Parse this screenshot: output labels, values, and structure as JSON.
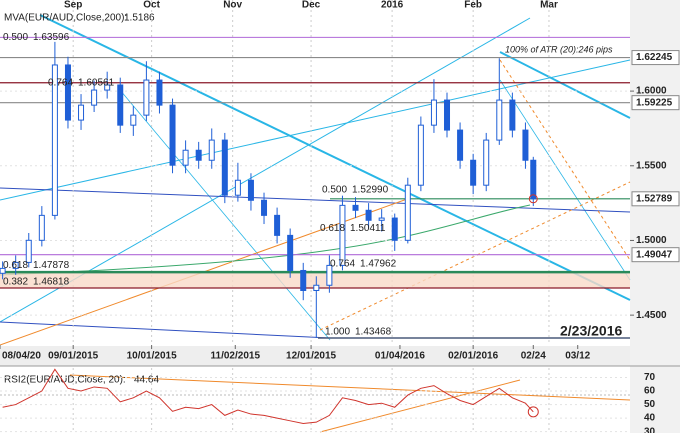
{
  "chart_data": [
    {
      "type": "candlestick",
      "indicator_label": "MVA(EUR/AUD,Close,200):",
      "indicator_value": 1.5186,
      "note": "100% of ATR (20):246 pips",
      "watermark": "2/23/2016",
      "x": [
        "2015-08-05",
        "2015-08-10",
        "2015-08-15",
        "2015-08-20",
        "2015-08-25",
        "2015-08-30",
        "2015-09-04",
        "2015-09-09",
        "2015-09-14",
        "2015-09-19",
        "2015-09-24",
        "2015-09-29",
        "2015-10-04",
        "2015-10-09",
        "2015-10-14",
        "2015-10-19",
        "2015-10-24",
        "2015-10-29",
        "2015-11-03",
        "2015-11-08",
        "2015-11-13",
        "2015-11-18",
        "2015-11-23",
        "2015-11-28",
        "2015-12-03",
        "2015-12-08",
        "2015-12-13",
        "2015-12-18",
        "2015-12-23",
        "2015-12-28",
        "2016-01-02",
        "2016-01-07",
        "2016-01-12",
        "2016-01-17",
        "2016-01-22",
        "2016-01-27",
        "2016-02-01",
        "2016-02-06",
        "2016-02-11",
        "2016-02-16",
        "2016-02-21",
        "2016-02-24"
      ],
      "open": [
        1.478,
        1.4813,
        1.4853,
        1.5001,
        1.5168,
        1.6175,
        1.5806,
        1.5906,
        1.6007,
        1.6041,
        1.5772,
        1.5839,
        1.6074,
        1.5906,
        1.5504,
        1.5604,
        1.5537,
        1.5672,
        1.5303,
        1.5403,
        1.5269,
        1.5168,
        1.5034,
        1.4799,
        1.4665,
        1.47,
        1.4833,
        1.5235,
        1.5202,
        1.5135,
        1.515,
        1.5001,
        1.537,
        1.5772,
        1.594,
        1.5739,
        1.5537,
        1.537,
        1.5672,
        1.594,
        1.5739,
        1.5537
      ],
      "high": [
        1.486,
        1.49,
        1.505,
        1.523,
        1.633,
        1.623,
        1.598,
        1.607,
        1.613,
        1.609,
        1.59,
        1.62,
        1.613,
        1.595,
        1.567,
        1.566,
        1.575,
        1.572,
        1.552,
        1.545,
        1.532,
        1.522,
        1.508,
        1.485,
        1.476,
        1.49,
        1.53,
        1.529,
        1.525,
        1.521,
        1.518,
        1.542,
        1.583,
        1.608,
        1.599,
        1.579,
        1.558,
        1.572,
        1.622,
        1.599,
        1.579,
        1.556
      ],
      "low": [
        1.474,
        1.477,
        1.482,
        1.496,
        1.514,
        1.575,
        1.574,
        1.586,
        1.595,
        1.572,
        1.57,
        1.58,
        1.585,
        1.545,
        1.545,
        1.548,
        1.548,
        1.525,
        1.526,
        1.52,
        1.511,
        1.498,
        1.475,
        1.46,
        1.4347,
        1.465,
        1.48,
        1.515,
        1.508,
        1.506,
        1.493,
        1.498,
        1.533,
        1.572,
        1.569,
        1.548,
        1.531,
        1.533,
        1.564,
        1.569,
        1.548,
        1.523
      ],
      "close": [
        1.4813,
        1.4853,
        1.5001,
        1.5168,
        1.6175,
        1.5806,
        1.5906,
        1.6007,
        1.6041,
        1.5772,
        1.5839,
        1.6074,
        1.5906,
        1.5504,
        1.5604,
        1.5537,
        1.5672,
        1.5303,
        1.5403,
        1.5269,
        1.5168,
        1.5034,
        1.4799,
        1.4665,
        1.47,
        1.4833,
        1.5235,
        1.5202,
        1.5135,
        1.515,
        1.5001,
        1.537,
        1.5772,
        1.594,
        1.5739,
        1.5537,
        1.537,
        1.5672,
        1.594,
        1.5739,
        1.5537,
        1.52789
      ],
      "up_color": "#ffffff",
      "down_color": "#1f5fd6",
      "wick_color": "#1f5fd6",
      "xlim": [
        "2015-08-04",
        "2016-04-01"
      ],
      "xticks": [
        {
          "value": "2015-08-04",
          "label": "08/04/20"
        },
        {
          "value": "2015-09-01",
          "label": "09/01/2015"
        },
        {
          "value": "2015-10-01",
          "label": "10/01/2015"
        },
        {
          "value": "2015-11-02",
          "label": "11/02/2015"
        },
        {
          "value": "2015-12-01",
          "label": "12/01/2015"
        },
        {
          "value": "2016-01-04",
          "label": "01/04/2016"
        },
        {
          "value": "2016-02-01",
          "label": "02/01/2016"
        },
        {
          "value": "2016-02-24",
          "label": "02/24"
        },
        {
          "value": "2016-03-12",
          "label": "03/12"
        }
      ],
      "xticks_top": [
        {
          "value": "2015-09-01",
          "label": "Sep"
        },
        {
          "value": "2015-10-01",
          "label": "Oct"
        },
        {
          "value": "2015-11-01",
          "label": "Nov"
        },
        {
          "value": "2015-12-01",
          "label": "Dec"
        },
        {
          "value": "2016-01-01",
          "label": "2016"
        },
        {
          "value": "2016-02-01",
          "label": "Feb"
        },
        {
          "value": "2016-03-01",
          "label": "Mar"
        }
      ],
      "ylim": [
        1.43,
        1.661
      ],
      "yticks": [
        {
          "value": 1.45,
          "label": "1.4500"
        },
        {
          "value": 1.5,
          "label": "1.5000"
        },
        {
          "value": 1.55,
          "label": "1.5500"
        },
        {
          "value": 1.6,
          "label": "1.6000"
        }
      ],
      "price_levels": [
        1.62245,
        1.59225,
        1.49047
      ],
      "fib_levels": [
        {
          "ratio": "0.500",
          "price": {
            "value": 1.63596,
            "label": "1.63596"
          }
        },
        {
          "ratio": "0.764",
          "price": {
            "value": 1.60561,
            "label": "1.60561"
          }
        },
        {
          "ratio": "0.500",
          "price": {
            "value": 1.5299,
            "label": "1.52990"
          }
        },
        {
          "ratio": "0.618",
          "price": {
            "value": 1.50411,
            "label": "1.50411"
          }
        },
        {
          "ratio": "0.618",
          "price": {
            "value": 1.47878,
            "label": "1.47878"
          }
        },
        {
          "ratio": "0.764",
          "price": {
            "value": 1.47962,
            "label": "1.47962"
          }
        },
        {
          "ratio": "0.382",
          "price": {
            "value": 1.46818,
            "label": "1.46818"
          }
        },
        {
          "ratio": "1.000",
          "price": {
            "value": 1.43468,
            "label": "1.43468"
          }
        }
      ]
    },
    {
      "type": "line",
      "title": "RSI2(EUR/AUD,Close, 20):",
      "color": "#d0342c",
      "values": [
        48,
        50,
        55,
        60,
        76,
        62,
        60,
        63,
        62,
        52,
        55,
        60,
        55,
        45,
        48,
        47,
        50,
        42,
        46,
        43,
        42,
        40,
        38,
        36,
        37,
        42,
        55,
        53,
        50,
        51,
        48,
        57,
        62,
        64,
        58,
        53,
        50,
        56,
        62,
        55,
        51,
        44.64
      ],
      "ylim": [
        29,
        77
      ],
      "yticks": [
        30,
        40,
        50,
        60,
        70
      ]
    }
  ]
}
